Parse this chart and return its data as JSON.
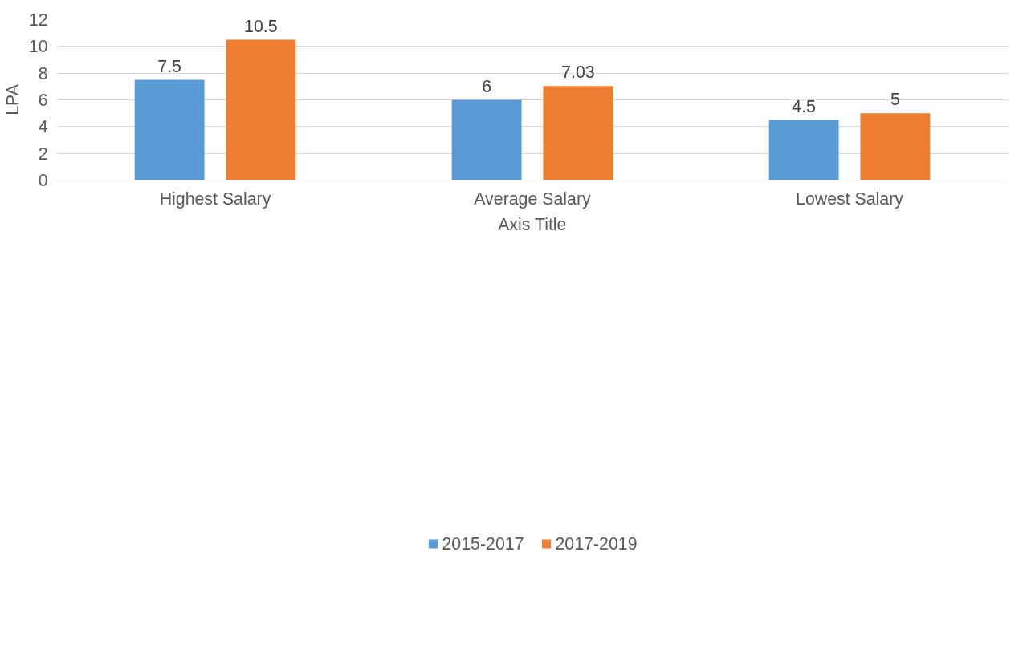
{
  "chart_data": {
    "type": "bar",
    "xlabel": "Axis Title",
    "ylabel": "LPA",
    "categories": [
      "Highest Salary",
      "Average Salary",
      "Lowest Salary"
    ],
    "series": [
      {
        "name": "2015-2017",
        "color": "#5b9bd5",
        "values": [
          7.5,
          6,
          4.5
        ]
      },
      {
        "name": "2017-2019",
        "color": "#ed7d31",
        "values": [
          10.5,
          7.03,
          5
        ]
      }
    ],
    "ylim": [
      0,
      12
    ],
    "yticks": [
      0,
      2,
      4,
      6,
      8,
      10,
      12
    ],
    "grid": "y",
    "legend": "bottom",
    "data_labels": true
  }
}
